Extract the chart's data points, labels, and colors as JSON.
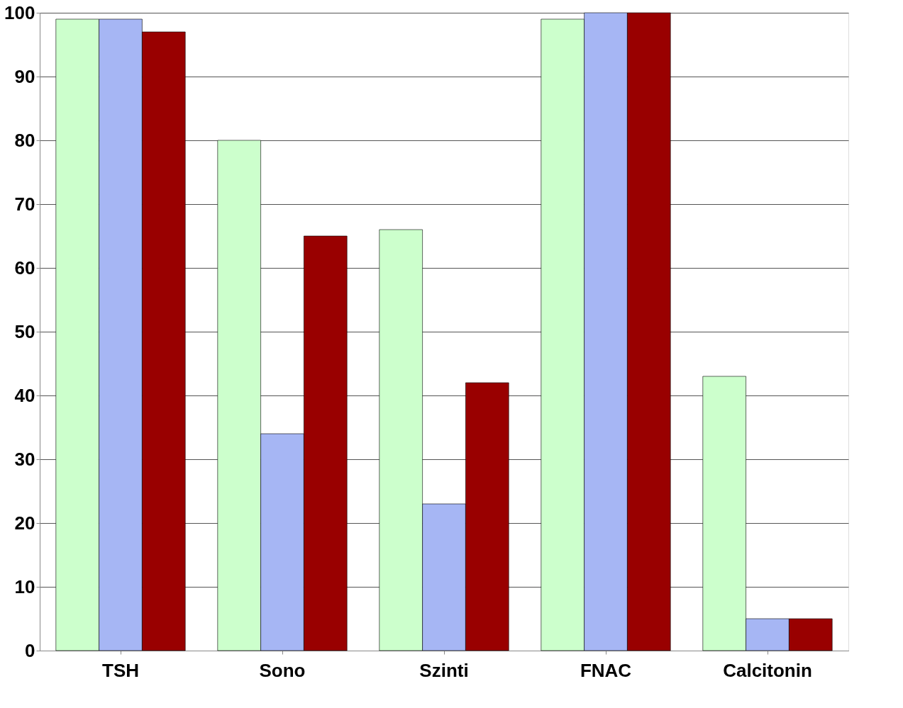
{
  "chart_data": {
    "type": "bar",
    "categories": [
      "TSH",
      "Sono",
      "Szinti",
      "FNAC",
      "Calcitonin"
    ],
    "series": [
      {
        "color": "#ccffcc",
        "values": [
          99,
          80,
          66,
          99,
          43
        ]
      },
      {
        "color": "#a6b6f4",
        "values": [
          99,
          34,
          23,
          100,
          5
        ]
      },
      {
        "color": "#990000",
        "values": [
          97,
          65,
          42,
          100,
          5
        ]
      }
    ],
    "ylim": [
      0,
      100
    ],
    "yticks": [
      0,
      10,
      20,
      30,
      40,
      50,
      60,
      70,
      80,
      90,
      100
    ],
    "grid": "y",
    "legend": false
  }
}
